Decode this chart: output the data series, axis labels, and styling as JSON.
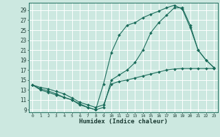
{
  "xlabel": "Humidex (Indice chaleur)",
  "background_color": "#cce8e0",
  "grid_color": "#ffffff",
  "line_color": "#1a6b5a",
  "xlim": [
    -0.5,
    23.5
  ],
  "ylim": [
    8.5,
    30.5
  ],
  "xticks": [
    0,
    1,
    2,
    3,
    4,
    5,
    6,
    7,
    8,
    9,
    10,
    11,
    12,
    13,
    14,
    15,
    16,
    17,
    18,
    19,
    20,
    21,
    22,
    23
  ],
  "yticks": [
    9,
    11,
    13,
    15,
    17,
    19,
    21,
    23,
    25,
    27,
    29
  ],
  "line1_x": [
    0,
    1,
    2,
    3,
    4,
    5,
    6,
    7,
    8,
    9,
    10,
    11,
    12,
    13,
    14,
    15,
    16,
    17,
    18,
    19,
    20,
    21,
    22,
    23
  ],
  "line1_y": [
    14,
    13.5,
    13.2,
    12.7,
    12.2,
    11.4,
    10.5,
    10.0,
    9.5,
    10.0,
    14.2,
    14.7,
    15.0,
    15.4,
    15.8,
    16.2,
    16.6,
    17.0,
    17.2,
    17.3,
    17.3,
    17.3,
    17.3,
    17.3
  ],
  "line2_x": [
    0,
    1,
    2,
    3,
    4,
    5,
    6,
    7,
    8,
    9,
    10,
    11,
    12,
    13,
    14,
    15,
    16,
    17,
    18,
    19,
    20,
    21,
    22,
    23
  ],
  "line2_y": [
    14,
    13.2,
    12.8,
    12.2,
    11.5,
    11.0,
    10.2,
    9.5,
    9.0,
    14.2,
    20.5,
    24.0,
    26.0,
    26.5,
    27.5,
    28.2,
    28.8,
    29.5,
    30.0,
    29.2,
    25.5,
    21.0,
    19.0,
    17.5
  ],
  "line3_x": [
    0,
    1,
    2,
    3,
    4,
    5,
    6,
    7,
    8,
    9,
    10,
    11,
    12,
    13,
    14,
    15,
    16,
    17,
    18,
    19,
    20,
    21,
    22,
    23
  ],
  "line3_y": [
    14,
    13.0,
    12.5,
    12.0,
    11.5,
    11.0,
    10.0,
    9.5,
    9.0,
    9.5,
    15.0,
    16.0,
    17.0,
    18.5,
    21.0,
    24.5,
    26.5,
    28.0,
    29.5,
    29.5,
    26.0,
    21.0,
    19.0,
    17.5
  ]
}
